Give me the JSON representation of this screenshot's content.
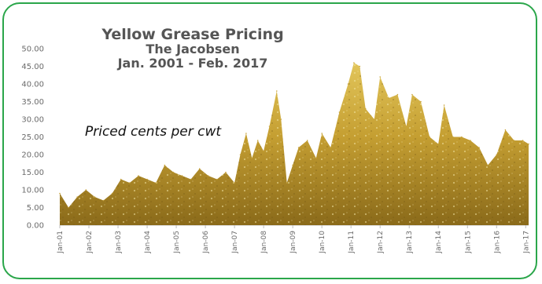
{
  "chart_data": {
    "type": "area",
    "title": "Yellow Grease Pricing",
    "subtitle_line1": "The Jacobsen",
    "subtitle_line2": "Jan. 2001 - Feb. 2017",
    "annotation": "Priced cents per cwt",
    "xlabel": "",
    "ylabel": "",
    "ylim": [
      0,
      50
    ],
    "y_ticks": [
      "0.00",
      "5.00",
      "10.00",
      "15.00",
      "20.00",
      "25.00",
      "30.00",
      "35.00",
      "40.00",
      "45.00",
      "50.00"
    ],
    "x_ticks": [
      "Jan-01",
      "Jan-02",
      "Jan-03",
      "Jan-04",
      "Jan-05",
      "Jan-06",
      "Jan-07",
      "Jan-08",
      "Jan-09",
      "Jan-10",
      "Jan-11",
      "Jan-12",
      "Jan-13",
      "Jan-14",
      "Jan-15",
      "Jan-16",
      "Jan-17"
    ],
    "grid": false,
    "fill_color": "#c9a43a",
    "series": [
      {
        "x": [
          2001.0,
          2001.3,
          2001.6,
          2001.9,
          2002.2,
          2002.5,
          2002.8,
          2003.1,
          2003.4,
          2003.7,
          2004.0,
          2004.3,
          2004.6,
          2004.9,
          2005.2,
          2005.5,
          2005.8,
          2006.1,
          2006.4,
          2006.7,
          2007.0,
          2007.2,
          2007.4,
          2007.6,
          2007.8,
          2008.0,
          2008.2,
          2008.45,
          2008.6,
          2008.8,
          2009.0,
          2009.2,
          2009.5,
          2009.8,
          2010.0,
          2010.3,
          2010.6,
          2010.9,
          2011.1,
          2011.3,
          2011.5,
          2011.8,
          2012.0,
          2012.3,
          2012.6,
          2012.9,
          2013.1,
          2013.4,
          2013.7,
          2014.0,
          2014.2,
          2014.5,
          2014.8,
          2015.1,
          2015.4,
          2015.7,
          2016.0,
          2016.3,
          2016.6,
          2016.9,
          2017.1
        ],
        "values": [
          9,
          5,
          8,
          10,
          8,
          7,
          9,
          13,
          12,
          14,
          13,
          12,
          17,
          15,
          14,
          13,
          16,
          14,
          13,
          15,
          12,
          20,
          26,
          19,
          24,
          21,
          28,
          38,
          30,
          12,
          17,
          22,
          24,
          19,
          26,
          22,
          32,
          40,
          46,
          45,
          33,
          30,
          42,
          36,
          37,
          28,
          37,
          35,
          25,
          23,
          34,
          25,
          25,
          24,
          22,
          17,
          20,
          27,
          24,
          24,
          23
        ]
      }
    ]
  }
}
